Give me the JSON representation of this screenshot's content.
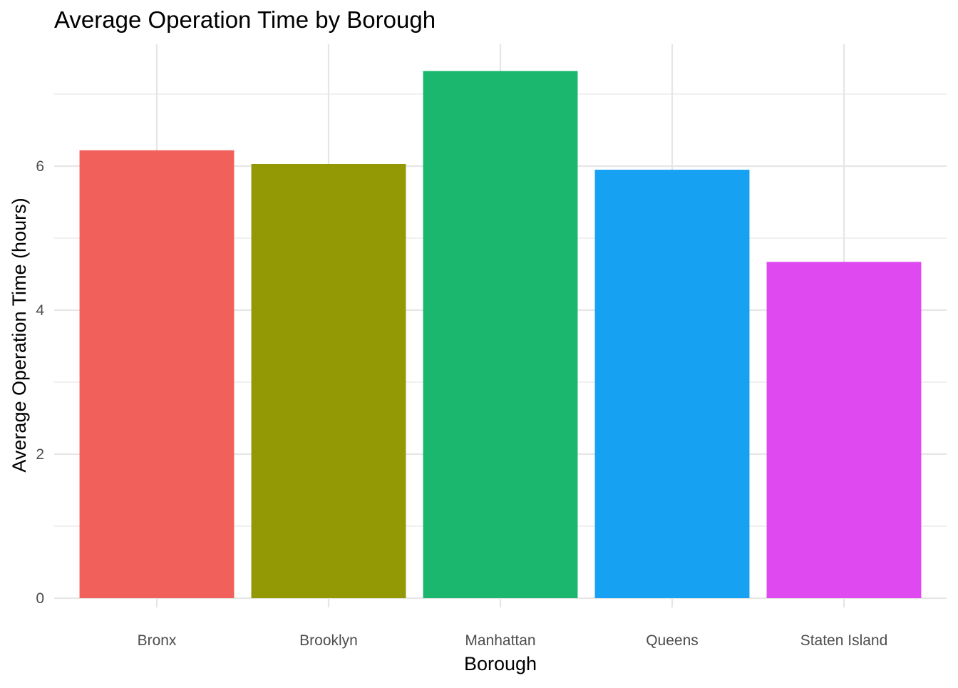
{
  "chart_data": {
    "type": "bar",
    "title": "Average Operation Time by Borough",
    "xlabel": "Borough",
    "ylabel": "Average Operation Time (hours)",
    "categories": [
      "Bronx",
      "Brooklyn",
      "Manhattan",
      "Queens",
      "Staten Island"
    ],
    "values": [
      6.22,
      6.03,
      7.32,
      5.95,
      4.67
    ],
    "colors": [
      "#F8766D",
      "#A3A500",
      "#00BF7D",
      "#00B0F6",
      "#E76BF3"
    ],
    "bar_colors_rendered": [
      "#F2605C",
      "#939904",
      "#1BB76E",
      "#17A1F2",
      "#DE49F0"
    ],
    "yticks": [
      0,
      2,
      4,
      6
    ],
    "yticks_labels": [
      "0",
      "2",
      "4",
      "6"
    ],
    "ylim": [
      0,
      7.6
    ],
    "grid": true,
    "legend": "none"
  }
}
